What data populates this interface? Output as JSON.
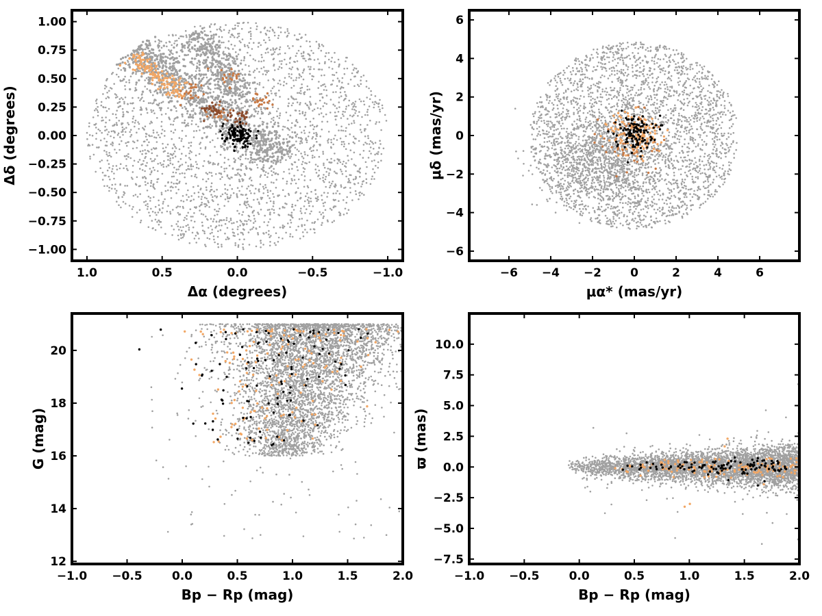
{
  "chart_data": [
    {
      "id": "sky",
      "type": "scatter",
      "xlabel": "Δα (degrees)",
      "ylabel": "Δδ (degrees)",
      "xlim": [
        1.1,
        -1.1
      ],
      "ylim": [
        -1.1,
        1.1
      ],
      "xticks": [
        1.0,
        0.5,
        0.0,
        -0.5,
        -1.0
      ],
      "xtick_labels": [
        "1.0",
        "0.5",
        "0.0",
        "−0.5",
        "−1.0"
      ],
      "yticks": [
        1.0,
        0.75,
        0.5,
        0.25,
        0.0,
        -0.25,
        -0.5,
        -0.75,
        -1.0
      ],
      "ytick_labels": [
        "1.00",
        "0.75",
        "0.50",
        "0.25",
        "0.00",
        "−0.25",
        "−0.50",
        "−0.75",
        "−1.00"
      ],
      "grid": false,
      "series": [
        {
          "role": "field",
          "color": "#a0a0a0",
          "n": 2600,
          "shape": "disk",
          "radius_deg": 1.0,
          "x_scale": 1.0
        },
        {
          "role": "stream",
          "color": "#a0a0a0",
          "n": 900,
          "shape": "band",
          "from": [
            0.7,
            0.75
          ],
          "to": [
            -0.3,
            -0.2
          ],
          "width": 0.09
        },
        {
          "role": "stream2",
          "color": "#a0a0a0",
          "n": 300,
          "shape": "band",
          "from": [
            0.3,
            0.9
          ],
          "to": [
            -0.05,
            0.35
          ],
          "width": 0.06
        },
        {
          "role": "members-light",
          "color": "#f2a765",
          "n": 140,
          "shape": "band",
          "from": [
            0.7,
            0.7
          ],
          "to": [
            0.35,
            0.35
          ],
          "width": 0.04
        },
        {
          "role": "members-mid",
          "color": "#c87a46",
          "n": 90,
          "shape": "clumps",
          "centers": [
            [
              0.3,
              0.38
            ],
            [
              0.12,
              0.2
            ],
            [
              0.05,
              0.5
            ],
            [
              -0.15,
              0.3
            ]
          ],
          "spread": 0.04
        },
        {
          "role": "members-dark",
          "color": "#8b4a2b",
          "n": 60,
          "shape": "clumps",
          "centers": [
            [
              -0.01,
              0.17
            ],
            [
              0.15,
              0.22
            ]
          ],
          "spread": 0.03
        },
        {
          "role": "core",
          "color": "#000000",
          "n": 110,
          "shape": "clumps",
          "centers": [
            [
              0.0,
              0.0
            ]
          ],
          "spread": 0.05
        }
      ]
    },
    {
      "id": "pm",
      "type": "scatter",
      "xlabel": "μα* (mas/yr)",
      "ylabel": "μδ (mas/yr)",
      "xlim": [
        -7.9,
        7.9
      ],
      "ylim": [
        -6.5,
        6.5
      ],
      "xticks": [
        -6,
        -4,
        -2,
        0,
        2,
        4,
        6
      ],
      "xtick_labels": [
        "−6",
        "−4",
        "−2",
        "0",
        "2",
        "4",
        "6"
      ],
      "yticks": [
        6,
        4,
        2,
        0,
        -2,
        -4,
        -6
      ],
      "ytick_labels": [
        "6",
        "4",
        "2",
        "0",
        "−2",
        "−4",
        "−6"
      ],
      "grid": false,
      "series": [
        {
          "role": "field",
          "color": "#a0a0a0",
          "n": 2800,
          "shape": "pmdisk",
          "radius": 5.0
        },
        {
          "role": "field-core",
          "color": "#a0a0a0",
          "n": 900,
          "shape": "gauss",
          "center": [
            -1.5,
            -1.2
          ],
          "sigma": [
            1.3,
            1.2
          ]
        },
        {
          "role": "members-light",
          "color": "#f2a765",
          "n": 160,
          "shape": "gauss",
          "center": [
            0.1,
            0.1
          ],
          "sigma": [
            0.6,
            0.6
          ]
        },
        {
          "role": "members-mid",
          "color": "#c87a46",
          "n": 50,
          "shape": "gauss",
          "center": [
            -0.2,
            -0.4
          ],
          "sigma": [
            0.7,
            0.9
          ]
        },
        {
          "role": "core",
          "color": "#000000",
          "n": 110,
          "shape": "gauss",
          "center": [
            0.0,
            0.2
          ],
          "sigma": [
            0.45,
            0.45
          ]
        }
      ]
    },
    {
      "id": "cmd",
      "type": "scatter",
      "xlabel": "Bp − Rp (mag)",
      "ylabel": "G (mag)",
      "xlim": [
        -1.0,
        2.0
      ],
      "ylim": [
        11.9,
        21.4
      ],
      "xticks": [
        -1.0,
        -0.5,
        0.0,
        0.5,
        1.0,
        1.5,
        2.0
      ],
      "xtick_labels": [
        "−1.0",
        "−0.5",
        "0.0",
        "0.5",
        "1.0",
        "1.5",
        "2.0"
      ],
      "yticks": [
        20,
        18,
        16,
        14,
        12
      ],
      "ytick_labels": [
        "20",
        "18",
        "16",
        "14",
        "12"
      ],
      "grid": false,
      "series": [
        {
          "role": "field",
          "color": "#a0a0a0",
          "n": 4200,
          "shape": "cmd",
          "xcenter": 1.25,
          "xspread": 0.45,
          "gmin": 16.0,
          "gmax": 21.0
        },
        {
          "role": "field-sparse",
          "color": "#a0a0a0",
          "n": 120,
          "shape": "uniform",
          "x": [
            -0.3,
            2.0
          ],
          "y": [
            12.8,
            20.8
          ]
        },
        {
          "role": "members-light",
          "color": "#f2a765",
          "n": 150,
          "shape": "cmd",
          "xcenter": 1.0,
          "xspread": 0.5,
          "gmin": 16.5,
          "gmax": 20.8
        },
        {
          "role": "core",
          "color": "#000000",
          "n": 110,
          "shape": "cmd",
          "xcenter": 0.9,
          "xspread": 0.55,
          "gmin": 16.3,
          "gmax": 20.8
        }
      ]
    },
    {
      "id": "parallax",
      "type": "scatter",
      "xlabel": "Bp − Rp (mag)",
      "ylabel": "ϖ (mas)",
      "xlim": [
        -1.0,
        2.0
      ],
      "ylim": [
        -7.9,
        12.5
      ],
      "xticks": [
        -1.0,
        -0.5,
        0.0,
        0.5,
        1.0,
        1.5,
        2.0
      ],
      "xtick_labels": [
        "−1.0",
        "−0.5",
        "0.0",
        "0.5",
        "1.0",
        "1.5",
        "2.0"
      ],
      "yticks": [
        10.0,
        7.5,
        5.0,
        2.5,
        0.0,
        -2.5,
        -5.0,
        -7.5
      ],
      "ytick_labels": [
        "10.0",
        "7.5",
        "5.0",
        "2.5",
        "0.0",
        "−2.5",
        "−5.0",
        "−7.5"
      ],
      "grid": false,
      "series": [
        {
          "role": "field",
          "color": "#a0a0a0",
          "n": 4200,
          "shape": "plx",
          "x": [
            -0.1,
            2.0
          ],
          "sigma0": 0.35,
          "sigma1": 0.9
        },
        {
          "role": "members-light",
          "color": "#f2a765",
          "n": 150,
          "shape": "plx",
          "x": [
            0.2,
            2.0
          ],
          "sigma0": 0.25,
          "sigma1": 0.5
        },
        {
          "role": "core",
          "color": "#000000",
          "n": 110,
          "shape": "plx",
          "x": [
            0.3,
            1.9
          ],
          "sigma0": 0.2,
          "sigma1": 0.35
        }
      ]
    }
  ]
}
